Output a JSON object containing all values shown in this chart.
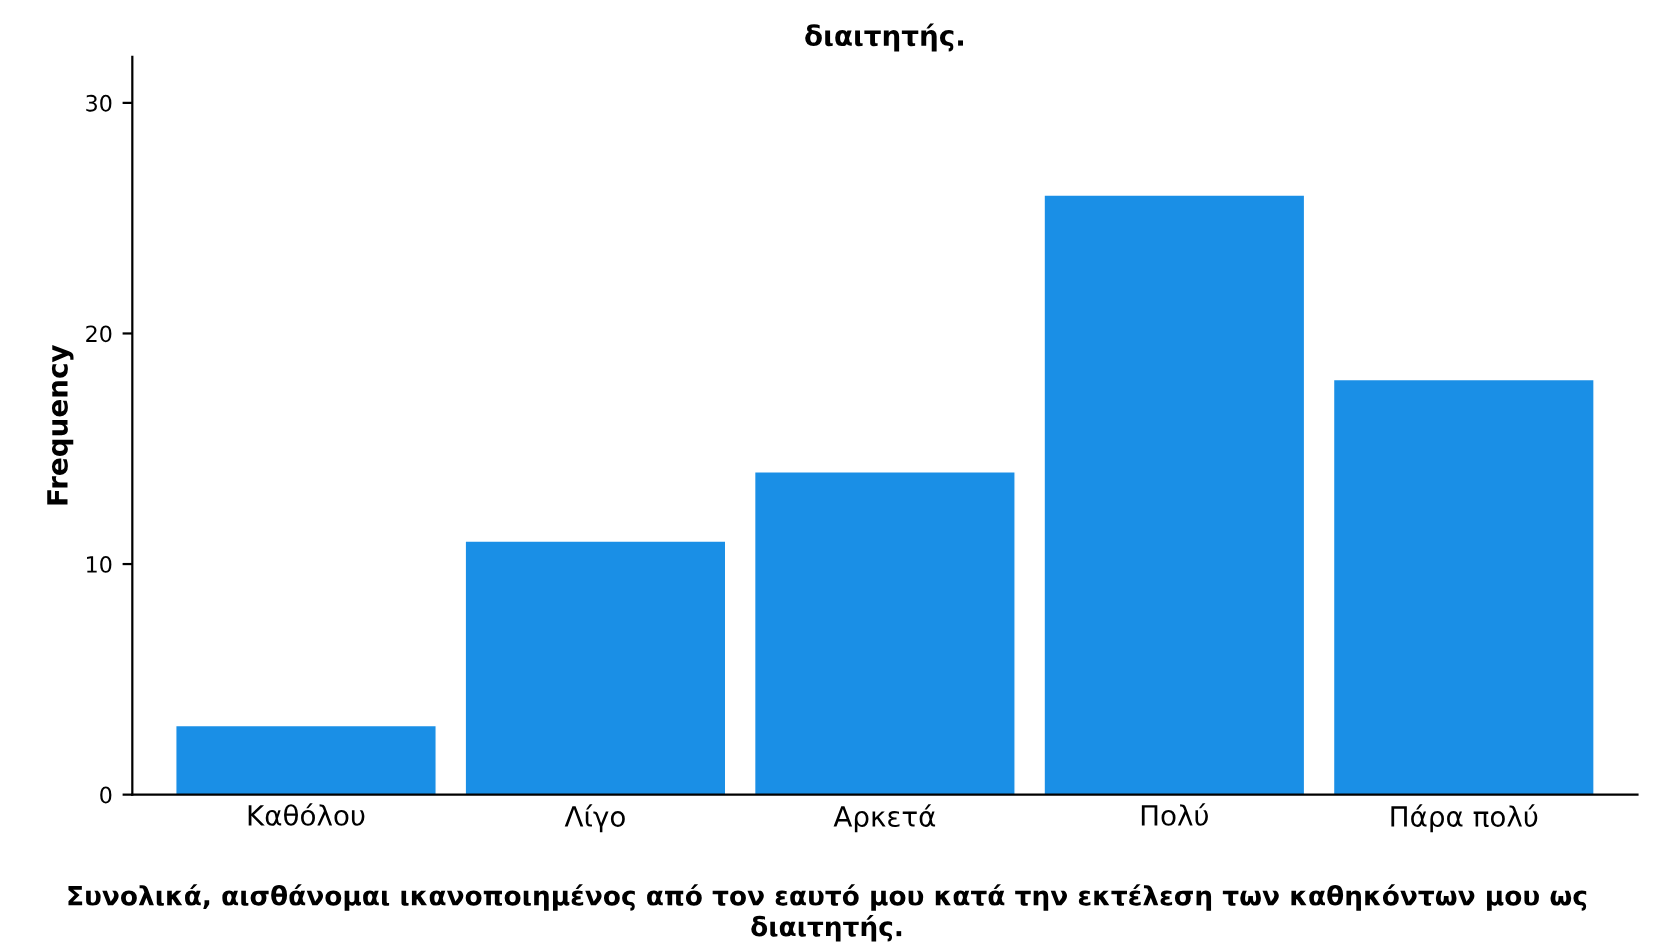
{
  "chart_data": {
    "type": "bar",
    "title": "διαιτητής.",
    "categories": [
      "Καθόλου",
      "Λίγο",
      "Αρκετά",
      "Πολύ",
      "Πάρα πολύ"
    ],
    "values": [
      3,
      11,
      14,
      26,
      18
    ],
    "color": "#1a8fe6",
    "xlabel": "Συνολικά, αισθάνομαι ικανοποιημένος από τον εαυτό μου κατά την εκτέλεση των καθηκόντων μου ως διαιτητής.",
    "ylabel": "Frequency",
    "ylim": [
      0,
      32
    ],
    "yticks": [
      0,
      10,
      20,
      30
    ],
    "grid": false
  }
}
